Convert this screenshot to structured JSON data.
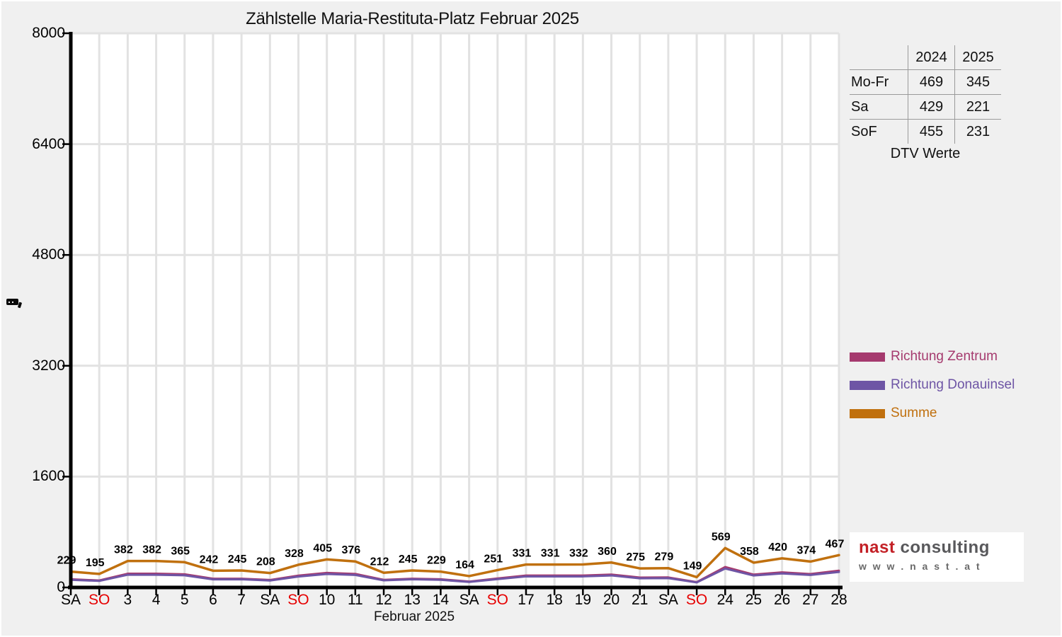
{
  "chart_data": {
    "type": "line",
    "title": "Zählstelle Maria-Restituta-Platz Februar 2025",
    "xlabel": "Februar 2025",
    "ylabel": "",
    "ylim": [
      0,
      8000
    ],
    "y_ticks": [
      0,
      1600,
      3200,
      4800,
      6400,
      8000
    ],
    "grid": true,
    "legend_position": "right",
    "x_labels": [
      {
        "t": "SA",
        "red": false
      },
      {
        "t": "SO",
        "red": true
      },
      {
        "t": "3",
        "red": false
      },
      {
        "t": "4",
        "red": false
      },
      {
        "t": "5",
        "red": false
      },
      {
        "t": "6",
        "red": false
      },
      {
        "t": "7",
        "red": false
      },
      {
        "t": "SA",
        "red": false
      },
      {
        "t": "SO",
        "red": true
      },
      {
        "t": "10",
        "red": false
      },
      {
        "t": "11",
        "red": false
      },
      {
        "t": "12",
        "red": false
      },
      {
        "t": "13",
        "red": false
      },
      {
        "t": "14",
        "red": false
      },
      {
        "t": "SA",
        "red": false
      },
      {
        "t": "SO",
        "red": true
      },
      {
        "t": "17",
        "red": false
      },
      {
        "t": "18",
        "red": false
      },
      {
        "t": "19",
        "red": false
      },
      {
        "t": "20",
        "red": false
      },
      {
        "t": "21",
        "red": false
      },
      {
        "t": "SA",
        "red": false
      },
      {
        "t": "SO",
        "red": true
      },
      {
        "t": "24",
        "red": false
      },
      {
        "t": "25",
        "red": false
      },
      {
        "t": "26",
        "red": false
      },
      {
        "t": "27",
        "red": false
      },
      {
        "t": "28",
        "red": false
      }
    ],
    "series": [
      {
        "name": "Richtung Zentrum",
        "color": "#a53a6e",
        "width": 3,
        "show_point_labels": false,
        "values": [
          119,
          101,
          199,
          199,
          190,
          126,
          127,
          108,
          171,
          211,
          196,
          110,
          127,
          119,
          85,
          131,
          172,
          172,
          173,
          187,
          143,
          145,
          77,
          296,
          186,
          218,
          194,
          243
        ]
      },
      {
        "name": "Richtung Donauinsel",
        "color": "#6e55a5",
        "width": 3,
        "show_point_labels": false,
        "values": [
          110,
          94,
          183,
          183,
          175,
          116,
          118,
          100,
          157,
          194,
          180,
          102,
          118,
          110,
          79,
          120,
          159,
          159,
          159,
          173,
          132,
          134,
          72,
          273,
          172,
          202,
          180,
          224
        ]
      },
      {
        "name": "Summe",
        "color": "#c0700e",
        "width": 3.5,
        "show_point_labels": true,
        "values": [
          229,
          195,
          382,
          382,
          365,
          242,
          245,
          208,
          328,
          405,
          376,
          212,
          245,
          229,
          164,
          251,
          331,
          331,
          332,
          360,
          275,
          279,
          149,
          569,
          358,
          420,
          374,
          467
        ]
      }
    ]
  },
  "table": {
    "headers": [
      "2024",
      "2025"
    ],
    "rows": [
      {
        "label": "Mo-Fr",
        "v2024": "469",
        "v2025": "345"
      },
      {
        "label": "Sa",
        "v2024": "429",
        "v2025": "221"
      },
      {
        "label": "SoF",
        "v2024": "455",
        "v2025": "231"
      }
    ],
    "caption": "DTV Werte"
  },
  "legend": {
    "items": [
      {
        "label": "Richtung Zentrum",
        "color": "#a53a6e"
      },
      {
        "label": "Richtung Donauinsel",
        "color": "#6e55a5"
      },
      {
        "label": "Summe",
        "color": "#c0700e"
      }
    ]
  },
  "logo": {
    "brand_primary": "nast",
    "brand_secondary": "consulting",
    "url": "w w w . n a s t . a t"
  },
  "colors": {
    "sunday": "#e60000",
    "grid": "#e2e2e2",
    "axis": "#000000",
    "background": "#f0f0f0",
    "plot_background": "#ffffff",
    "label_text": "#000000"
  }
}
